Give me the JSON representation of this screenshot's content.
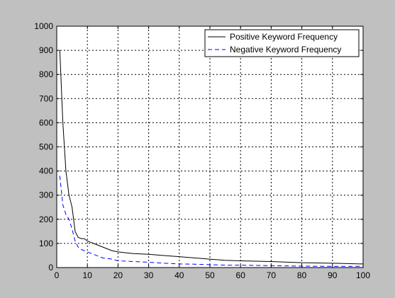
{
  "chart_data": {
    "type": "line",
    "title": "",
    "xlabel": "",
    "ylabel": "",
    "xlim": [
      0,
      100
    ],
    "ylim": [
      0,
      1000
    ],
    "xticks": [
      0,
      10,
      20,
      30,
      40,
      50,
      60,
      70,
      80,
      90,
      100
    ],
    "yticks": [
      0,
      100,
      200,
      300,
      400,
      500,
      600,
      700,
      800,
      900,
      1000
    ],
    "xtick_labels": [
      "0",
      "10",
      "20",
      "30",
      "40",
      "50",
      "60",
      "70",
      "80",
      "90",
      "100"
    ],
    "ytick_labels": [
      "0",
      "100",
      "200",
      "300",
      "400",
      "500",
      "600",
      "700",
      "800",
      "900",
      "1000"
    ],
    "grid": true,
    "legend_position": "top-right",
    "series": [
      {
        "name": "Positive Keyword Frequency",
        "color": "#000000",
        "dash": "solid",
        "x": [
          1,
          2,
          3,
          4,
          5,
          6,
          7,
          8,
          9,
          10,
          12,
          15,
          18,
          20,
          25,
          30,
          35,
          40,
          45,
          50,
          55,
          60,
          70,
          80,
          90,
          100
        ],
        "y": [
          900,
          600,
          400,
          300,
          250,
          150,
          125,
          120,
          120,
          110,
          100,
          85,
          70,
          65,
          58,
          55,
          50,
          45,
          40,
          35,
          30,
          28,
          25,
          20,
          18,
          15
        ]
      },
      {
        "name": "Negative Keyword Frequency",
        "color": "#0000ff",
        "dash": "dashed",
        "x": [
          1,
          2,
          3,
          4,
          5,
          6,
          7,
          8,
          9,
          10,
          12,
          15,
          18,
          20,
          25,
          30,
          35,
          40,
          45,
          50,
          55,
          60,
          70,
          80,
          90,
          100
        ],
        "y": [
          380,
          260,
          220,
          200,
          160,
          110,
          85,
          75,
          70,
          65,
          55,
          40,
          35,
          28,
          25,
          22,
          18,
          15,
          14,
          12,
          10,
          10,
          8,
          6,
          5,
          5
        ]
      }
    ]
  }
}
